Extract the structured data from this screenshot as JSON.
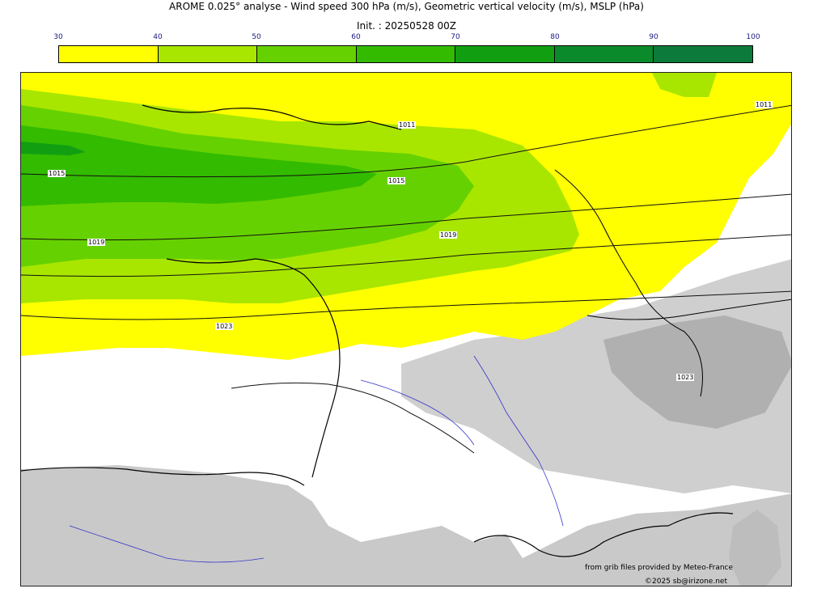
{
  "title": "AROME 0.025° analyse - Wind speed 300 hPa (m/s), Geometric vertical velocity (m/s), MSLP (hPa)",
  "subtitle": "Init. : 20250528 00Z",
  "colorbar": {
    "ticks": [
      "30",
      "40",
      "50",
      "60",
      "70",
      "80",
      "90",
      "100"
    ],
    "colors": [
      "#ffff00",
      "#a8e600",
      "#66d100",
      "#33bb00",
      "#119f11",
      "#0a8a2a",
      "#0b7a3a"
    ]
  },
  "isobar_labels": [
    "1015",
    "1011",
    "1015",
    "1019",
    "1019",
    "1023",
    "1011",
    "1023"
  ],
  "credits": {
    "source": "from grib files provided by Meteo-France",
    "copyright": "©2025 sb@irizone.net"
  }
}
